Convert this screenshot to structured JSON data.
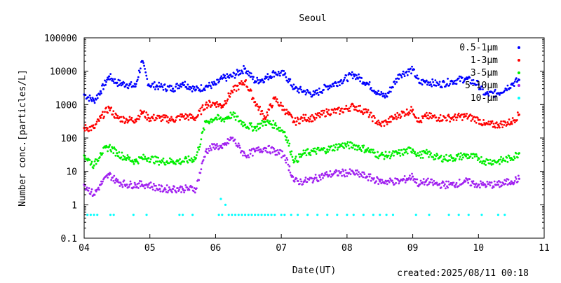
{
  "chart_data": {
    "type": "scatter",
    "title": "Seoul",
    "xlabel": "Date(UT)",
    "ylabel": "Number conc.[particles/L]",
    "x_unit": "day of month",
    "xlim": [
      4,
      11
    ],
    "x_ticks": [
      "04",
      "05",
      "06",
      "07",
      "08",
      "09",
      "10",
      "11"
    ],
    "ylim": [
      0.1,
      100000
    ],
    "y_scale": "log",
    "y_ticks": [
      "0.1",
      "1",
      "10",
      "100",
      "1000",
      "10000",
      "100000"
    ],
    "legend_position": "top-right",
    "grid": false,
    "series": [
      {
        "name": "0.5-1µm",
        "color": "#0000ff",
        "x": [
          4.0,
          4.15,
          4.25,
          4.38,
          4.5,
          4.65,
          4.78,
          4.88,
          4.98,
          5.15,
          5.35,
          5.5,
          5.7,
          5.85,
          6.0,
          6.1,
          6.25,
          6.45,
          6.6,
          6.75,
          6.9,
          7.05,
          7.2,
          7.35,
          7.5,
          7.7,
          7.9,
          8.1,
          8.3,
          8.5,
          8.6,
          8.8,
          9.0,
          9.1,
          9.2,
          9.4,
          9.6,
          9.8,
          10.0,
          10.1,
          10.3,
          10.5,
          10.62
        ],
        "y": [
          2000,
          1300,
          2500,
          7000,
          4500,
          4000,
          3500,
          20000,
          4000,
          3500,
          3000,
          4500,
          2800,
          3500,
          4000,
          6000,
          7000,
          12000,
          5000,
          6000,
          9000,
          8000,
          3000,
          2500,
          2000,
          3500,
          5000,
          8000,
          4500,
          2000,
          1800,
          8000,
          11000,
          4500,
          5000,
          4000,
          5000,
          6000,
          4000,
          2000,
          2200,
          4000,
          5500
        ]
      },
      {
        "name": "1-3µm",
        "color": "#ff0000",
        "x": [
          4.0,
          4.15,
          4.25,
          4.38,
          4.5,
          4.65,
          4.78,
          4.88,
          4.98,
          5.15,
          5.35,
          5.5,
          5.7,
          5.85,
          6.0,
          6.1,
          6.25,
          6.45,
          6.6,
          6.75,
          6.9,
          7.05,
          7.2,
          7.35,
          7.5,
          7.7,
          7.9,
          8.1,
          8.3,
          8.5,
          8.6,
          8.8,
          9.0,
          9.1,
          9.2,
          9.4,
          9.6,
          9.8,
          10.0,
          10.1,
          10.3,
          10.5,
          10.62
        ],
        "y": [
          200,
          200,
          400,
          800,
          400,
          350,
          350,
          600,
          400,
          400,
          350,
          450,
          400,
          1000,
          1100,
          900,
          2500,
          5000,
          1200,
          400,
          1500,
          700,
          300,
          400,
          400,
          600,
          650,
          900,
          600,
          250,
          300,
          500,
          700,
          300,
          450,
          400,
          400,
          450,
          350,
          250,
          250,
          300,
          500
        ]
      },
      {
        "name": "3-5µm",
        "color": "#00ee00",
        "x": [
          4.0,
          4.15,
          4.25,
          4.38,
          4.5,
          4.65,
          4.78,
          4.88,
          4.98,
          5.15,
          5.35,
          5.5,
          5.7,
          5.85,
          6.0,
          6.1,
          6.25,
          6.45,
          6.6,
          6.75,
          6.9,
          7.05,
          7.2,
          7.35,
          7.5,
          7.7,
          7.9,
          8.1,
          8.3,
          8.5,
          8.6,
          8.8,
          9.0,
          9.1,
          9.2,
          9.4,
          9.6,
          9.8,
          10.0,
          10.1,
          10.3,
          10.5,
          10.62
        ],
        "y": [
          30,
          15,
          35,
          55,
          35,
          25,
          20,
          25,
          25,
          20,
          20,
          20,
          25,
          300,
          400,
          350,
          500,
          250,
          200,
          300,
          250,
          150,
          20,
          35,
          40,
          45,
          60,
          60,
          45,
          30,
          30,
          35,
          45,
          30,
          35,
          25,
          25,
          30,
          25,
          20,
          20,
          25,
          35
        ]
      },
      {
        "name": "5-10µm",
        "color": "#a020f0",
        "x": [
          4.0,
          4.15,
          4.25,
          4.38,
          4.5,
          4.65,
          4.78,
          4.88,
          4.98,
          5.15,
          5.35,
          5.5,
          5.7,
          5.85,
          6.0,
          6.1,
          6.25,
          6.45,
          6.6,
          6.75,
          6.9,
          7.05,
          7.2,
          7.35,
          7.5,
          7.7,
          7.9,
          8.1,
          8.3,
          8.5,
          8.6,
          8.8,
          9.0,
          9.1,
          9.2,
          9.4,
          9.6,
          9.8,
          10.0,
          10.1,
          10.3,
          10.5,
          10.62
        ],
        "y": [
          4,
          2,
          4,
          8,
          5,
          4,
          4,
          4,
          4,
          3,
          3,
          3,
          3,
          40,
          60,
          50,
          100,
          30,
          40,
          50,
          40,
          30,
          5,
          5,
          6,
          8,
          9,
          9,
          7,
          5,
          5,
          5,
          7,
          4,
          5,
          4,
          4,
          5,
          4,
          4,
          4,
          5,
          6
        ]
      },
      {
        "name": "10-µm",
        "color": "#00ffff",
        "x": [
          4.05,
          4.1,
          4.15,
          4.2,
          4.4,
          4.45,
          4.75,
          4.95,
          5.45,
          5.5,
          5.65,
          6.05,
          6.08,
          6.1,
          6.15,
          6.2,
          6.25,
          6.3,
          6.35,
          6.4,
          6.45,
          6.5,
          6.55,
          6.6,
          6.65,
          6.7,
          6.75,
          6.8,
          6.85,
          6.9,
          7.0,
          7.05,
          7.15,
          7.25,
          7.4,
          7.55,
          7.7,
          7.85,
          8.0,
          8.1,
          8.25,
          8.4,
          8.5,
          8.6,
          8.7,
          9.05,
          9.25,
          9.55,
          9.7,
          9.85,
          10.05,
          10.3,
          10.4
        ],
        "y": [
          0.5,
          0.5,
          0.5,
          0.5,
          0.5,
          0.5,
          0.5,
          0.5,
          0.5,
          0.5,
          0.5,
          0.5,
          1.5,
          0.5,
          1,
          0.5,
          0.5,
          0.5,
          0.5,
          0.5,
          0.5,
          0.5,
          0.5,
          0.5,
          0.5,
          0.5,
          0.5,
          0.5,
          0.5,
          0.5,
          0.5,
          0.5,
          0.5,
          0.5,
          0.5,
          0.5,
          0.5,
          0.5,
          0.5,
          0.5,
          0.5,
          0.5,
          0.5,
          0.5,
          0.5,
          0.5,
          0.5,
          0.5,
          0.5,
          0.5,
          0.5,
          0.5,
          0.5
        ]
      }
    ]
  },
  "footer": {
    "created": "created:2025/08/11 00:18"
  }
}
